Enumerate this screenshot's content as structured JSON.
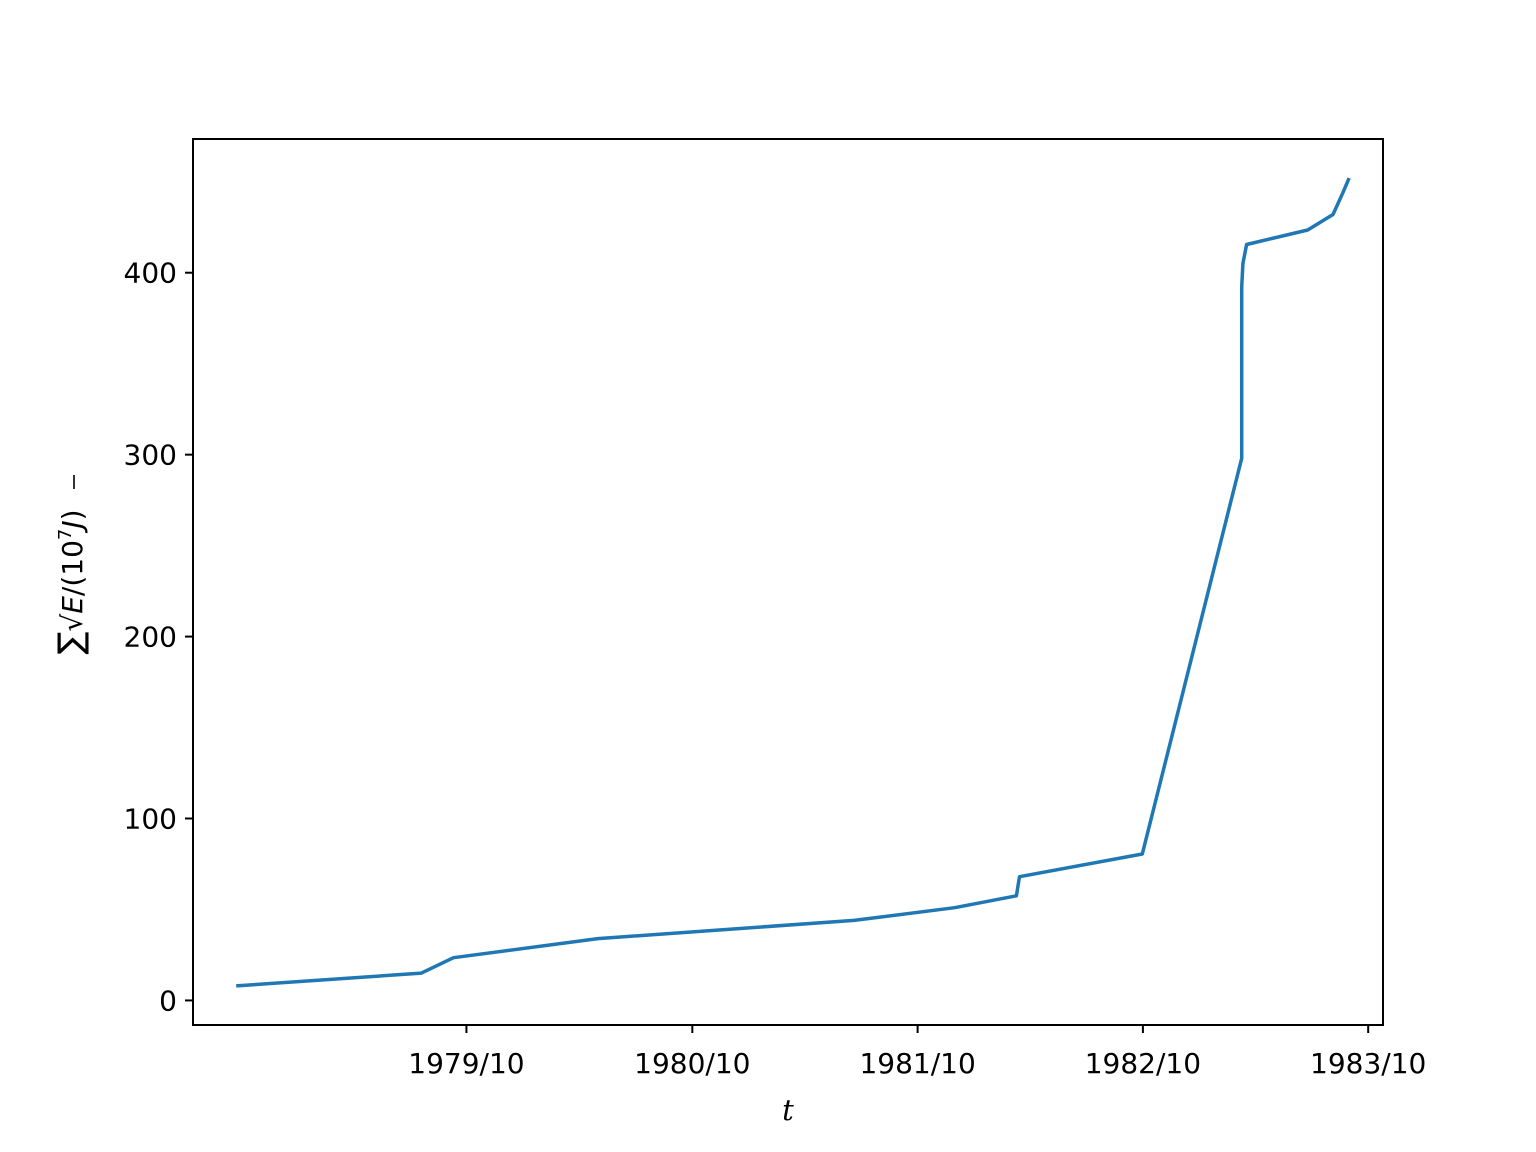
{
  "chart_data": {
    "type": "line",
    "title": "",
    "xlabel": "t",
    "ylabel": "∑√E/(10⁷J)",
    "ylabel_parts": {
      "sum": "∑",
      "root": "√",
      "var": "E",
      "pre": "/(10",
      "exp": "7",
      "unit": "J",
      "post": ")"
    },
    "xlim": [
      "1978-07-15",
      "1983-10-25"
    ],
    "ylim": [
      -13.5,
      473.5
    ],
    "xticks": [
      {
        "label": "1979/10",
        "date": "1979-10-01"
      },
      {
        "label": "1980/10",
        "date": "1980-10-01"
      },
      {
        "label": "1981/10",
        "date": "1981-10-01"
      },
      {
        "label": "1982/10",
        "date": "1982-10-01"
      },
      {
        "label": "1983/10",
        "date": "1983-10-01"
      }
    ],
    "yticks": [
      0,
      100,
      200,
      300,
      400
    ],
    "grid": false,
    "series": [
      {
        "color": "#1f77b4",
        "points": [
          {
            "date": "1978-09-23",
            "y": 8
          },
          {
            "date": "1979-07-20",
            "y": 15
          },
          {
            "date": "1979-09-10",
            "y": 23.5
          },
          {
            "date": "1980-05-01",
            "y": 34
          },
          {
            "date": "1981-06-20",
            "y": 44
          },
          {
            "date": "1981-11-30",
            "y": 51
          },
          {
            "date": "1982-03-10",
            "y": 57.5
          },
          {
            "date": "1982-03-15",
            "y": 68
          },
          {
            "date": "1982-09-30",
            "y": 80.5
          },
          {
            "date": "1983-03-10",
            "y": 298
          },
          {
            "date": "1983-03-10",
            "y": 392
          },
          {
            "date": "1983-03-12",
            "y": 405
          },
          {
            "date": "1983-03-18",
            "y": 415.5
          },
          {
            "date": "1983-06-25",
            "y": 423.5
          },
          {
            "date": "1983-08-05",
            "y": 432
          },
          {
            "date": "1983-08-21",
            "y": 444
          },
          {
            "date": "1983-08-31",
            "y": 452
          }
        ]
      }
    ]
  }
}
